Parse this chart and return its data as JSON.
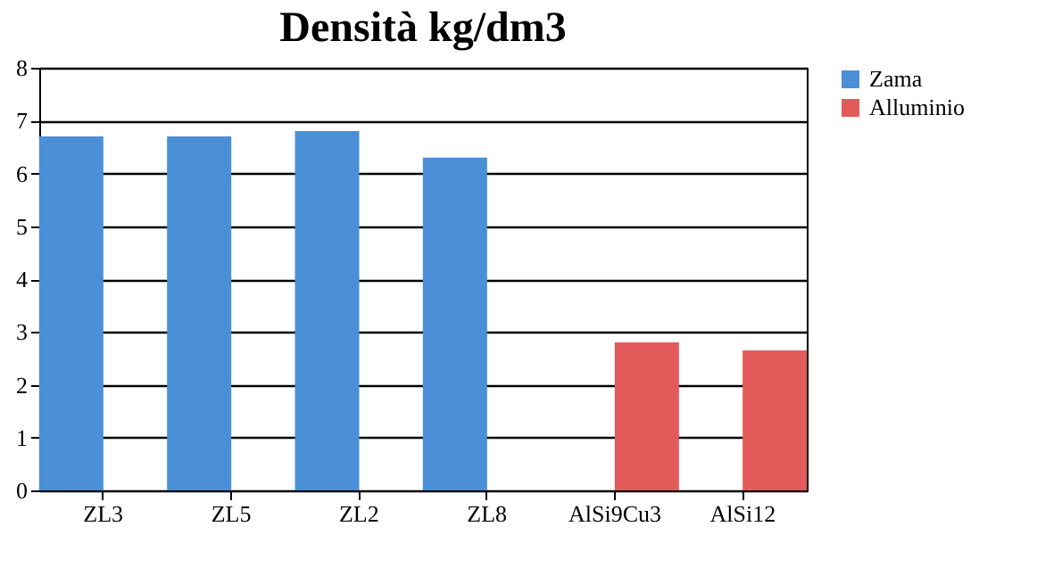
{
  "chart_data": {
    "type": "bar",
    "title": "Densità kg/dm3",
    "categories": [
      "ZL3",
      "ZL5",
      "ZL2",
      "ZL8",
      "AlSi9Cu3",
      "AlSi12"
    ],
    "series": [
      {
        "name": "Zama",
        "color": "#4a8fd8",
        "values": [
          6.7,
          6.7,
          6.8,
          6.3,
          null,
          null
        ]
      },
      {
        "name": "Alluminio",
        "color": "#e35a5a",
        "values": [
          null,
          null,
          null,
          null,
          2.8,
          2.65
        ]
      }
    ],
    "ylim": [
      0,
      8
    ],
    "yticks": [
      0,
      1,
      2,
      3,
      4,
      5,
      6,
      7,
      8
    ],
    "grid": "y",
    "legend": "right"
  }
}
